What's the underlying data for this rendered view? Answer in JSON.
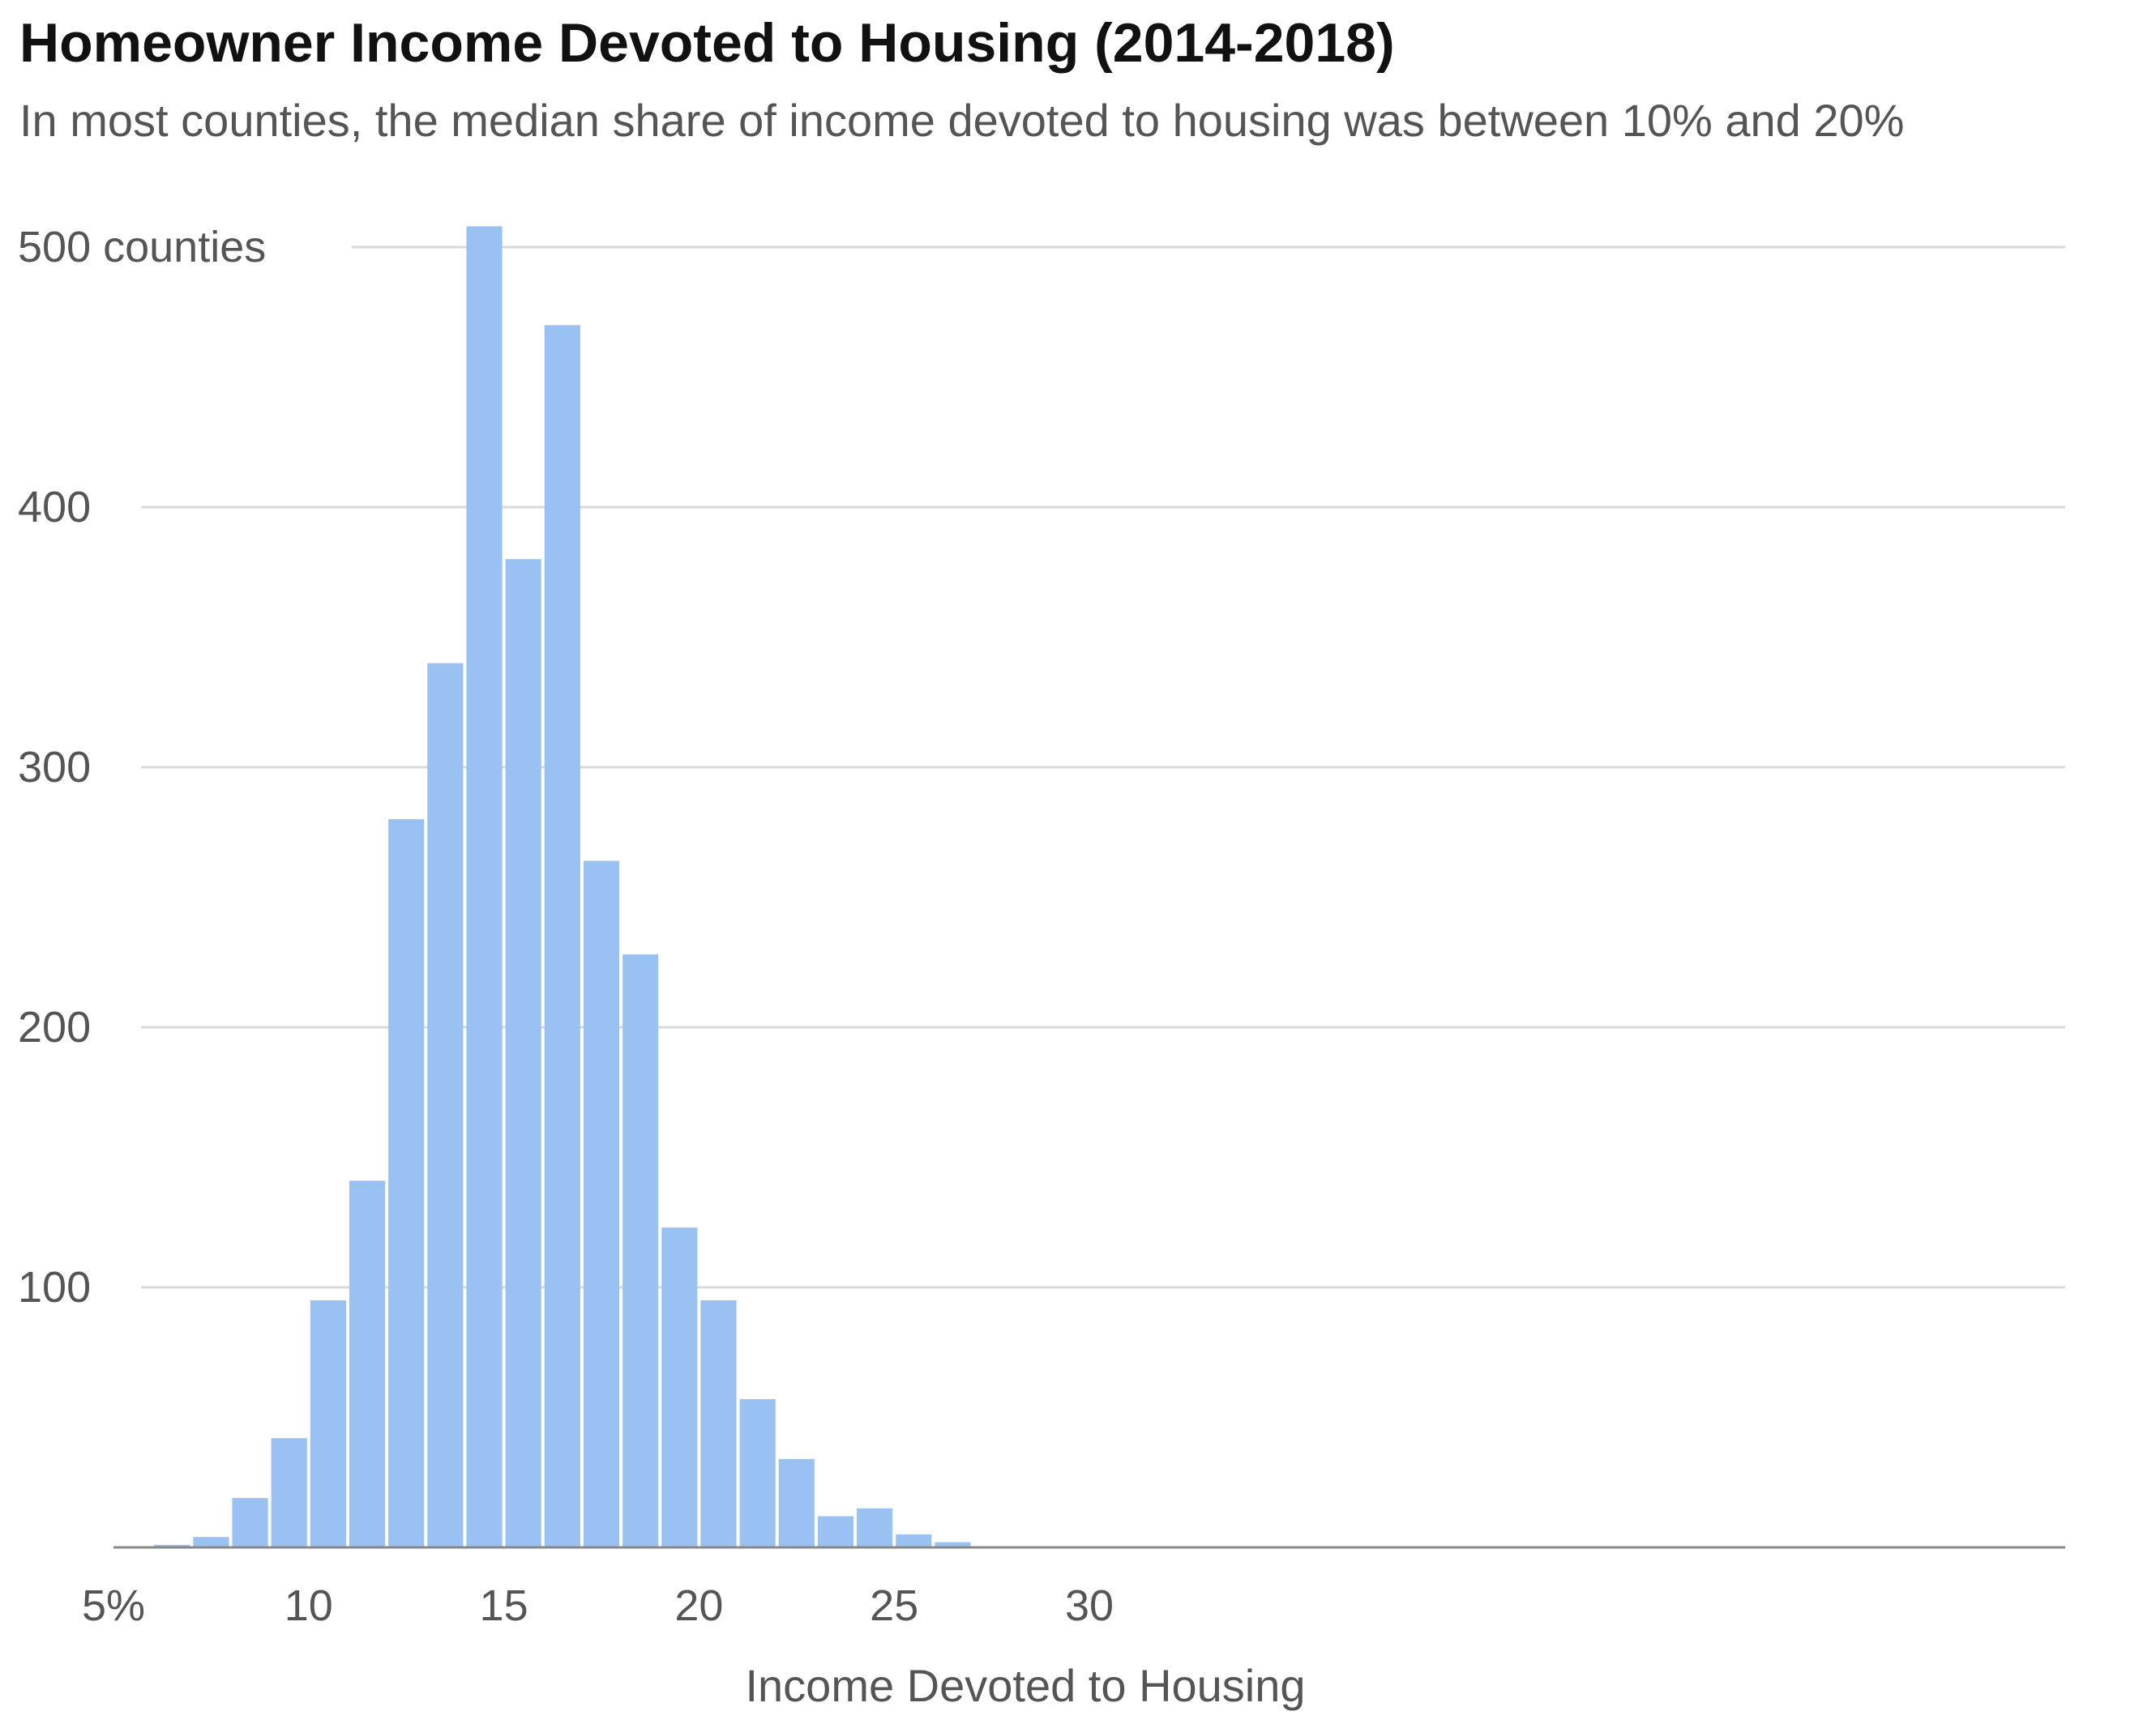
{
  "title": "Homeowner Income Devoted to Housing (2014-2018)",
  "subtitle": "In most counties, the median share of income devoted to housing was between 10% and 20%",
  "colors": {
    "bar": "#99c1f1",
    "grid": "#d9d9d9",
    "axis": "#888888",
    "text": "#555555"
  },
  "chart_data": {
    "type": "bar",
    "title": "Homeowner Income Devoted to Housing (2014-2018)",
    "subtitle": "In most counties, the median share of income devoted to housing was between 10% and 20%",
    "xlabel": "Income Devoted to Housing",
    "ylabel": "",
    "xlim": [
      5,
      55
    ],
    "ylim": [
      0,
      500
    ],
    "bin_width": 1,
    "x_ticks": [
      5,
      10,
      15,
      20,
      25,
      30
    ],
    "x_tick_labels": [
      "5%",
      "10",
      "15",
      "20",
      "25",
      "30"
    ],
    "y_ticks": [
      100,
      200,
      300,
      400,
      500
    ],
    "y_tick_labels": [
      "100",
      "200",
      "300",
      "400",
      "500 counties"
    ],
    "grid": true,
    "legend": "none",
    "bins_start": [
      5,
      6,
      7,
      8,
      9,
      10,
      11,
      12,
      13,
      14,
      15,
      16,
      17,
      18,
      19,
      20,
      21,
      22,
      23,
      24,
      25,
      26
    ],
    "values": [
      0,
      1,
      4,
      19,
      42,
      95,
      141,
      280,
      340,
      508,
      380,
      470,
      264,
      228,
      123,
      95,
      57,
      34,
      12,
      15,
      5,
      2
    ]
  }
}
